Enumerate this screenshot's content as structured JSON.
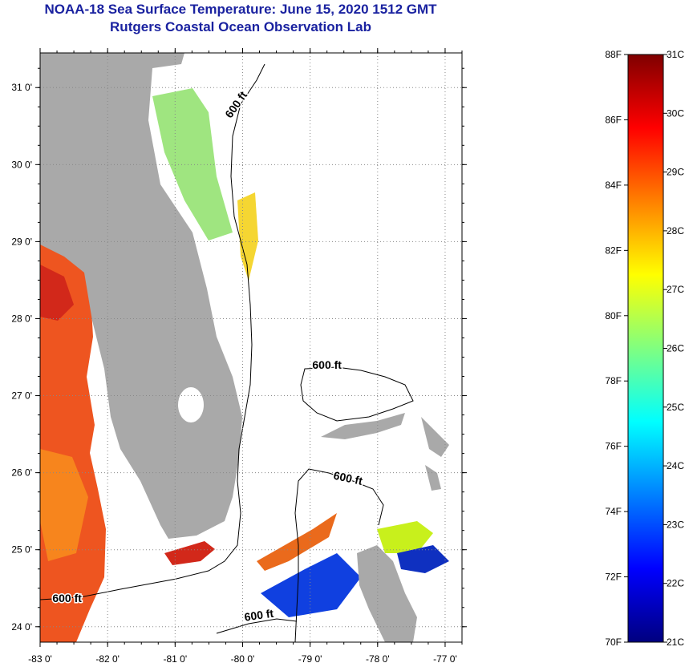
{
  "title": {
    "line1": "NOAA-18 Sea Surface Temperature:  June 15, 2020 1512 GMT",
    "line2": "Rutgers Coastal Ocean Observation Lab"
  },
  "map": {
    "lon_range": [
      -83,
      -76.75
    ],
    "lat_range": [
      23.8,
      31.45
    ],
    "x_ticks": [
      {
        "v": -83,
        "label": "-83 0'"
      },
      {
        "v": -82,
        "label": "-82 0'"
      },
      {
        "v": -81,
        "label": "-81 0'"
      },
      {
        "v": -80,
        "label": "-80 0'"
      },
      {
        "v": -79,
        "label": "-79 0'"
      },
      {
        "v": -78,
        "label": "-78 0'"
      },
      {
        "v": -77,
        "label": "-77 0'"
      }
    ],
    "y_ticks": [
      {
        "v": 24,
        "label": "24 0'"
      },
      {
        "v": 25,
        "label": "25 0'"
      },
      {
        "v": 26,
        "label": "26 0'"
      },
      {
        "v": 27,
        "label": "27 0'"
      },
      {
        "v": 28,
        "label": "28 0'"
      },
      {
        "v": 29,
        "label": "29 0'"
      },
      {
        "v": 30,
        "label": "30 0'"
      },
      {
        "v": 31,
        "label": "31 0'"
      }
    ],
    "contour_label": "600 ft",
    "contour_labels": [
      {
        "lon": -80.05,
        "lat": 30.75,
        "rotate": -55
      },
      {
        "lon": -78.75,
        "lat": 27.35,
        "rotate": 0
      },
      {
        "lon": -78.45,
        "lat": 25.88,
        "rotate": 12
      },
      {
        "lon": -82.6,
        "lat": 24.32,
        "rotate": 0
      },
      {
        "lon": -79.75,
        "lat": 24.1,
        "rotate": -8
      }
    ],
    "colors": {
      "land": "#a9a9a9",
      "water": "#ffffff",
      "grid": "#888888"
    }
  },
  "colorbar": {
    "f_labels": [
      "88F",
      "86F",
      "84F",
      "82F",
      "80F",
      "78F",
      "76F",
      "74F",
      "72F",
      "70F"
    ],
    "c_labels": [
      "31C",
      "30C",
      "29C",
      "28C",
      "27C",
      "26C",
      "25C",
      "24C",
      "23C",
      "22C",
      "21C"
    ],
    "f_range": [
      70,
      88
    ],
    "c_range": [
      21,
      31
    ],
    "stops": [
      "#00007f",
      "#0000ff",
      "#0080ff",
      "#00ffff",
      "#80ff80",
      "#ffff00",
      "#ff8000",
      "#ff0000",
      "#7f0000"
    ]
  }
}
